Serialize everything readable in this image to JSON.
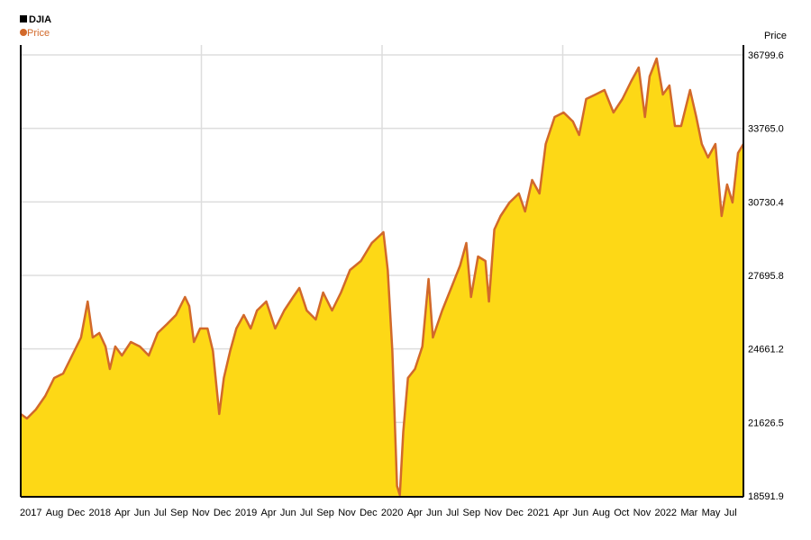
{
  "chart_data": {
    "type": "area",
    "title": "DJIA",
    "ylabel": "Price",
    "xlabel": "",
    "legend": "top-left",
    "grid": true,
    "y_axis_side": "right",
    "ylim": [
      18591.9,
      36799.6
    ],
    "xlim": [
      "2017-07-01",
      "2022-08-01"
    ],
    "yticks": [
      "18591.9",
      "21626.5",
      "24661.2",
      "27695.8",
      "30730.4",
      "33765.0",
      "36799.6"
    ],
    "xticks": [
      "2017",
      "Aug",
      "Dec",
      "2018",
      "Apr",
      "Jun",
      "Jul",
      "Sep",
      "Nov",
      "Dec",
      "2019",
      "Apr",
      "Jun",
      "Jul",
      "Sep",
      "Nov",
      "Dec",
      "2020",
      "Apr",
      "Jun",
      "Jul",
      "Sep",
      "Nov",
      "Dec",
      "2021",
      "Apr",
      "Jun",
      "Aug",
      "Oct",
      "Nov",
      "2022",
      "Mar",
      "May",
      "Jul"
    ],
    "colors": {
      "fill": "#fdd816",
      "line": "#d2692a",
      "grid": "#dddddd",
      "axis": "#000000"
    },
    "series": [
      {
        "name": "Price",
        "points": [
          [
            "2017-07-01",
            21974
          ],
          [
            "2017-07-17",
            21788
          ],
          [
            "2017-08-09",
            22159
          ],
          [
            "2017-09-02",
            22717
          ],
          [
            "2017-09-25",
            23460
          ],
          [
            "2017-10-18",
            23646
          ],
          [
            "2017-11-10",
            24389
          ],
          [
            "2017-12-03",
            25132
          ],
          [
            "2017-12-20",
            26619
          ],
          [
            "2018-01-02",
            25132
          ],
          [
            "2018-01-19",
            25318
          ],
          [
            "2018-02-04",
            24761
          ],
          [
            "2018-02-15",
            23832
          ],
          [
            "2018-03-01",
            24761
          ],
          [
            "2018-03-18",
            24389
          ],
          [
            "2018-04-10",
            24946
          ],
          [
            "2018-05-03",
            24761
          ],
          [
            "2018-05-26",
            24389
          ],
          [
            "2018-06-18",
            25318
          ],
          [
            "2018-07-12",
            25690
          ],
          [
            "2018-08-04",
            26061
          ],
          [
            "2018-08-27",
            26804
          ],
          [
            "2018-09-07",
            26433
          ],
          [
            "2018-09-19",
            24946
          ],
          [
            "2018-10-05",
            25504
          ],
          [
            "2018-10-24",
            25504
          ],
          [
            "2018-11-07",
            24575
          ],
          [
            "2018-11-23",
            21974
          ],
          [
            "2018-12-05",
            23460
          ],
          [
            "2018-12-21",
            24575
          ],
          [
            "2019-01-06",
            25504
          ],
          [
            "2019-01-25",
            26061
          ],
          [
            "2019-02-12",
            25504
          ],
          [
            "2019-02-28",
            26247
          ],
          [
            "2019-03-24",
            26619
          ],
          [
            "2019-04-16",
            25504
          ],
          [
            "2019-05-09",
            26247
          ],
          [
            "2019-06-01",
            26804
          ],
          [
            "2019-06-17",
            27176
          ],
          [
            "2019-07-06",
            26247
          ],
          [
            "2019-07-29",
            25875
          ],
          [
            "2019-08-17",
            26990
          ],
          [
            "2019-09-09",
            26247
          ],
          [
            "2019-10-02",
            26990
          ],
          [
            "2019-10-25",
            27919
          ],
          [
            "2019-11-22",
            28291
          ],
          [
            "2019-12-20",
            29034
          ],
          [
            "2020-01-19",
            29480
          ],
          [
            "2020-01-30",
            27919
          ],
          [
            "2020-02-11",
            24575
          ],
          [
            "2020-02-23",
            19001
          ],
          [
            "2020-03-01",
            18629
          ],
          [
            "2020-03-10",
            21230
          ],
          [
            "2020-03-22",
            23460
          ],
          [
            "2020-04-09",
            23832
          ],
          [
            "2020-04-28",
            24761
          ],
          [
            "2020-05-14",
            27548
          ],
          [
            "2020-05-25",
            25132
          ],
          [
            "2020-06-18",
            26247
          ],
          [
            "2020-07-11",
            27176
          ],
          [
            "2020-08-03",
            28105
          ],
          [
            "2020-08-19",
            29034
          ],
          [
            "2020-08-31",
            26804
          ],
          [
            "2020-09-18",
            28477
          ],
          [
            "2020-10-07",
            28291
          ],
          [
            "2020-10-16",
            26619
          ],
          [
            "2020-10-30",
            29592
          ],
          [
            "2020-11-15",
            30149
          ],
          [
            "2020-12-08",
            30706
          ],
          [
            "2021-01-01",
            31078
          ],
          [
            "2021-01-17",
            30335
          ],
          [
            "2021-02-04",
            31635
          ],
          [
            "2021-02-23",
            31078
          ],
          [
            "2021-03-11",
            33122
          ],
          [
            "2021-04-03",
            34236
          ],
          [
            "2021-04-26",
            34422
          ],
          [
            "2021-05-20",
            34051
          ],
          [
            "2021-06-05",
            33493
          ],
          [
            "2021-06-23",
            34980
          ],
          [
            "2021-07-17",
            35165
          ],
          [
            "2021-08-09",
            35351
          ],
          [
            "2021-09-01",
            34422
          ],
          [
            "2021-09-24",
            34980
          ],
          [
            "2021-10-17",
            35723
          ],
          [
            "2021-11-05",
            36280
          ],
          [
            "2021-11-21",
            34236
          ],
          [
            "2021-12-03",
            35909
          ],
          [
            "2021-12-21",
            36652
          ],
          [
            "2022-01-06",
            35165
          ],
          [
            "2022-01-23",
            35537
          ],
          [
            "2022-02-06",
            33865
          ],
          [
            "2022-02-22",
            33865
          ],
          [
            "2022-03-17",
            35351
          ],
          [
            "2022-04-02",
            34236
          ],
          [
            "2022-04-16",
            33122
          ],
          [
            "2022-05-02",
            32564
          ],
          [
            "2022-05-21",
            33122
          ],
          [
            "2022-06-06",
            30149
          ],
          [
            "2022-06-20",
            31449
          ],
          [
            "2022-07-04",
            30706
          ],
          [
            "2022-07-18",
            32750
          ],
          [
            "2022-08-01",
            33122
          ]
        ]
      }
    ]
  }
}
